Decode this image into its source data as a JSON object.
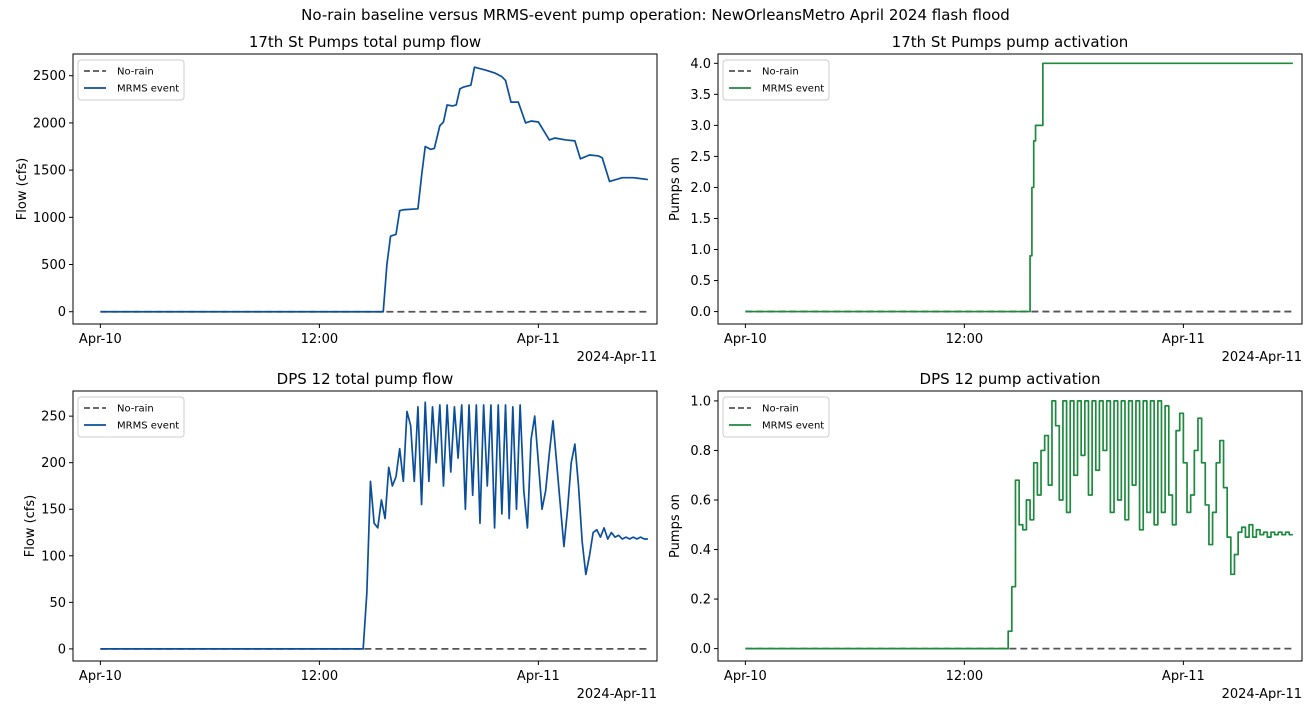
{
  "figure": {
    "title": "No-rain baseline versus MRMS-event pump operation: NewOrleansMetro April 2024 flash flood"
  },
  "colors": {
    "baseline": "#555555",
    "flow": "#0b4f9c",
    "activation": "#1e8a3e"
  },
  "chart_data": [
    {
      "type": "line",
      "title": "17th St Pumps total pump flow",
      "xlabel": "",
      "ylabel": "Flow (cfs)",
      "x_unit": "hours since 2024-04-10 00:00",
      "xlim": [
        -1.5,
        30.5
      ],
      "ylim": [
        -130,
        2730
      ],
      "xticks": [
        {
          "v": 0,
          "label": "Apr-10"
        },
        {
          "v": 12,
          "label": "12:00"
        },
        {
          "v": 24,
          "label": "Apr-11"
        }
      ],
      "xoffset_label": "2024-Apr-11",
      "yticks": [
        {
          "v": 0,
          "label": "0"
        },
        {
          "v": 500,
          "label": "500"
        },
        {
          "v": 1000,
          "label": "1000"
        },
        {
          "v": 1500,
          "label": "1500"
        },
        {
          "v": 2000,
          "label": "2000"
        },
        {
          "v": 2500,
          "label": "2500"
        }
      ],
      "legend": [
        "No-rain",
        "MRMS event"
      ],
      "series": [
        {
          "name": "No-rain",
          "style": "dashed",
          "x": [
            0,
            30
          ],
          "y": [
            0,
            0
          ]
        },
        {
          "name": "MRMS event",
          "style": "solid",
          "x": [
            0,
            15.5,
            15.7,
            15.9,
            16.2,
            16.4,
            16.6,
            17.4,
            17.6,
            17.8,
            18.1,
            18.3,
            18.6,
            18.8,
            19.0,
            19.3,
            19.5,
            19.7,
            19.9,
            20.3,
            20.5,
            21.1,
            21.6,
            22.0,
            22.2,
            22.5,
            22.9,
            23.3,
            23.6,
            24.0,
            24.6,
            24.9,
            25.5,
            26.0,
            26.3,
            26.8,
            27.3,
            27.5,
            27.9,
            28.6,
            29.2,
            30.0
          ],
          "y": [
            0,
            0,
            500,
            800,
            820,
            1070,
            1080,
            1090,
            1440,
            1750,
            1720,
            1730,
            1970,
            2010,
            2190,
            2180,
            2190,
            2360,
            2380,
            2400,
            2590,
            2560,
            2530,
            2490,
            2450,
            2220,
            2220,
            2000,
            2020,
            2010,
            1820,
            1840,
            1820,
            1810,
            1620,
            1660,
            1650,
            1630,
            1380,
            1420,
            1420,
            1400
          ]
        }
      ]
    },
    {
      "type": "line",
      "title": "17th St Pumps pump activation",
      "xlabel": "",
      "ylabel": "Pumps on",
      "x_unit": "hours since 2024-04-10 00:00",
      "xlim": [
        -1.5,
        30.5
      ],
      "ylim": [
        -0.2,
        4.15
      ],
      "xticks": [
        {
          "v": 0,
          "label": "Apr-10"
        },
        {
          "v": 12,
          "label": "12:00"
        },
        {
          "v": 24,
          "label": "Apr-11"
        }
      ],
      "xoffset_label": "2024-Apr-11",
      "yticks": [
        {
          "v": 0,
          "label": "0.0"
        },
        {
          "v": 0.5,
          "label": "0.5"
        },
        {
          "v": 1,
          "label": "1.0"
        },
        {
          "v": 1.5,
          "label": "1.5"
        },
        {
          "v": 2,
          "label": "2.0"
        },
        {
          "v": 2.5,
          "label": "2.5"
        },
        {
          "v": 3,
          "label": "3.0"
        },
        {
          "v": 3.5,
          "label": "3.5"
        },
        {
          "v": 4,
          "label": "4.0"
        }
      ],
      "legend": [
        "No-rain",
        "MRMS event"
      ],
      "series": [
        {
          "name": "No-rain",
          "style": "dashed",
          "x": [
            0,
            30
          ],
          "y": [
            0,
            0
          ]
        },
        {
          "name": "MRMS event",
          "style": "step",
          "x": [
            0,
            15.6,
            15.7,
            15.8,
            15.9,
            16.1,
            16.3,
            16.5,
            30
          ],
          "y": [
            0,
            0.9,
            2.0,
            2.75,
            3.0,
            3.0,
            4.0,
            4.0,
            4.0
          ]
        }
      ]
    },
    {
      "type": "line",
      "title": "DPS 12 total pump flow",
      "xlabel": "",
      "ylabel": "Flow (cfs)",
      "x_unit": "hours since 2024-04-10 00:00",
      "xlim": [
        -1.5,
        30.5
      ],
      "ylim": [
        -13,
        277
      ],
      "xticks": [
        {
          "v": 0,
          "label": "Apr-10"
        },
        {
          "v": 12,
          "label": "12:00"
        },
        {
          "v": 24,
          "label": "Apr-11"
        }
      ],
      "xoffset_label": "2024-Apr-11",
      "yticks": [
        {
          "v": 0,
          "label": "0"
        },
        {
          "v": 50,
          "label": "50"
        },
        {
          "v": 100,
          "label": "100"
        },
        {
          "v": 150,
          "label": "150"
        },
        {
          "v": 200,
          "label": "200"
        },
        {
          "v": 250,
          "label": "250"
        }
      ],
      "legend": [
        "No-rain",
        "MRMS event"
      ],
      "series": [
        {
          "name": "No-rain",
          "style": "dashed",
          "x": [
            0,
            30
          ],
          "y": [
            0,
            0
          ]
        },
        {
          "name": "MRMS event",
          "style": "solid",
          "x": [
            0,
            14.4,
            14.6,
            14.8,
            15.0,
            15.2,
            15.4,
            15.6,
            15.8,
            16.0,
            16.2,
            16.4,
            16.6,
            16.8,
            17.0,
            17.2,
            17.4,
            17.6,
            17.8,
            18.0,
            18.2,
            18.4,
            18.6,
            18.8,
            19.0,
            19.2,
            19.4,
            19.6,
            19.8,
            20.0,
            20.2,
            20.4,
            20.6,
            20.8,
            21.0,
            21.2,
            21.4,
            21.6,
            21.8,
            22.0,
            22.2,
            22.4,
            22.6,
            22.8,
            23.0,
            23.2,
            23.4,
            23.6,
            23.8,
            24.0,
            24.2,
            24.4,
            24.6,
            24.8,
            25.0,
            25.2,
            25.4,
            25.6,
            25.8,
            26.0,
            26.2,
            26.4,
            26.6,
            26.8,
            27.0,
            27.2,
            27.4,
            27.6,
            27.8,
            28.0,
            28.2,
            28.4,
            28.6,
            28.8,
            29.0,
            29.2,
            29.4,
            29.6,
            29.8,
            30.0
          ],
          "y": [
            0,
            0,
            60,
            180,
            135,
            130,
            160,
            140,
            195,
            175,
            185,
            215,
            180,
            255,
            240,
            180,
            260,
            155,
            265,
            180,
            260,
            200,
            262,
            175,
            262,
            190,
            260,
            205,
            262,
            150,
            262,
            165,
            262,
            135,
            262,
            175,
            262,
            130,
            262,
            145,
            262,
            140,
            260,
            150,
            262,
            170,
            130,
            225,
            250,
            200,
            150,
            170,
            210,
            245,
            200,
            155,
            110,
            150,
            200,
            220,
            175,
            115,
            80,
            100,
            125,
            128,
            120,
            130,
            118,
            125,
            120,
            122,
            118,
            120,
            118,
            120,
            118,
            120,
            118,
            118
          ]
        }
      ]
    },
    {
      "type": "line",
      "title": "DPS 12 pump activation",
      "xlabel": "",
      "ylabel": "Pumps on",
      "x_unit": "hours since 2024-04-10 00:00",
      "xlim": [
        -1.5,
        30.5
      ],
      "ylim": [
        -0.05,
        1.04
      ],
      "xticks": [
        {
          "v": 0,
          "label": "Apr-10"
        },
        {
          "v": 12,
          "label": "12:00"
        },
        {
          "v": 24,
          "label": "Apr-11"
        }
      ],
      "xoffset_label": "2024-Apr-11",
      "yticks": [
        {
          "v": 0,
          "label": "0.0"
        },
        {
          "v": 0.2,
          "label": "0.2"
        },
        {
          "v": 0.4,
          "label": "0.4"
        },
        {
          "v": 0.6,
          "label": "0.6"
        },
        {
          "v": 0.8,
          "label": "0.8"
        },
        {
          "v": 1,
          "label": "1.0"
        }
      ],
      "legend": [
        "No-rain",
        "MRMS event"
      ],
      "series": [
        {
          "name": "No-rain",
          "style": "dashed",
          "x": [
            0,
            30
          ],
          "y": [
            0,
            0
          ]
        },
        {
          "name": "MRMS event",
          "style": "step",
          "x": [
            0,
            14.4,
            14.6,
            14.8,
            15.0,
            15.2,
            15.4,
            15.6,
            15.8,
            16.0,
            16.2,
            16.4,
            16.6,
            16.8,
            17.0,
            17.2,
            17.4,
            17.6,
            17.8,
            18.0,
            18.2,
            18.4,
            18.6,
            18.8,
            19.0,
            19.2,
            19.4,
            19.6,
            19.8,
            20.0,
            20.2,
            20.4,
            20.6,
            20.8,
            21.0,
            21.2,
            21.4,
            21.6,
            21.8,
            22.0,
            22.2,
            22.4,
            22.6,
            22.8,
            23.0,
            23.2,
            23.4,
            23.6,
            23.8,
            24.0,
            24.2,
            24.4,
            24.6,
            24.8,
            25.0,
            25.2,
            25.4,
            25.6,
            25.8,
            26.0,
            26.2,
            26.4,
            26.6,
            26.8,
            27.0,
            27.2,
            27.4,
            27.6,
            27.8,
            28.0,
            28.2,
            28.4,
            28.6,
            28.8,
            29.0,
            29.2,
            29.4,
            29.6,
            29.8,
            30.0
          ],
          "y": [
            0,
            0.07,
            0.25,
            0.68,
            0.5,
            0.48,
            0.6,
            0.52,
            0.75,
            0.62,
            0.8,
            0.86,
            0.66,
            1.0,
            0.9,
            0.6,
            1.0,
            0.55,
            1.0,
            0.7,
            1.0,
            0.78,
            1.0,
            0.62,
            1.0,
            0.72,
            1.0,
            0.8,
            1.0,
            0.55,
            1.0,
            0.6,
            1.0,
            0.52,
            1.0,
            0.66,
            1.0,
            0.48,
            1.0,
            0.55,
            1.0,
            0.5,
            1.0,
            0.55,
            0.98,
            0.62,
            0.5,
            0.88,
            0.95,
            0.75,
            0.55,
            0.62,
            0.8,
            0.93,
            0.75,
            0.58,
            0.42,
            0.55,
            0.75,
            0.84,
            0.65,
            0.45,
            0.3,
            0.38,
            0.47,
            0.49,
            0.45,
            0.5,
            0.45,
            0.48,
            0.46,
            0.47,
            0.45,
            0.47,
            0.46,
            0.47,
            0.46,
            0.47,
            0.46,
            0.46
          ]
        }
      ]
    }
  ]
}
